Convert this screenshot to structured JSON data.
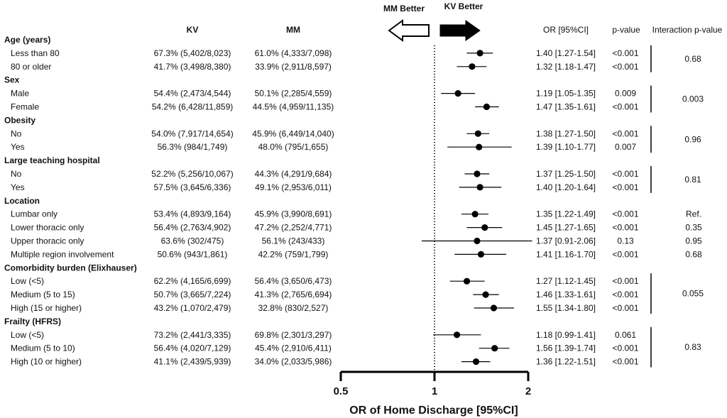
{
  "chart_data": {
    "type": "forest",
    "columns": {
      "kv": "KV",
      "mm": "MM",
      "or": "OR [95%CI]",
      "p": "p-value",
      "interaction": "Interaction p-value"
    },
    "better_labels": {
      "left": "MM Better",
      "right": "KV Better"
    },
    "xlabel": "OR of Home Discharge [95%CI]",
    "x_ticks": [
      "0.5",
      "1",
      "2"
    ],
    "xlim": [
      0.5,
      2
    ],
    "x_scale": "log",
    "reference_line": 1,
    "groups": [
      {
        "title": "Age (years)",
        "interaction_p": "0.68",
        "rows": [
          {
            "label": "Less than 80",
            "kv": "67.3% (5,402/8,023)",
            "mm": "61.0% (4,333/7,098)",
            "or_text": "1.40 [1.27-1.54]",
            "p": "<0.001",
            "or": 1.4,
            "lo": 1.27,
            "hi": 1.54
          },
          {
            "label": "80 or older",
            "kv": "41.7% (3,498/8,380)",
            "mm": "33.9% (2,911/8,597)",
            "or_text": "1.32 [1.18-1.47]",
            "p": "<0.001",
            "or": 1.32,
            "lo": 1.18,
            "hi": 1.47
          }
        ]
      },
      {
        "title": "Sex",
        "interaction_p": "0.003",
        "rows": [
          {
            "label": "Male",
            "kv": "54.4% (2,473/4,544)",
            "mm": "50.1% (2,285/4,559)",
            "or_text": "1.19 [1.05-1.35]",
            "p": "0.009",
            "or": 1.19,
            "lo": 1.05,
            "hi": 1.35
          },
          {
            "label": "Female",
            "kv": "54.2% (6,428/11,859)",
            "mm": "44.5% (4,959/11,135)",
            "or_text": "1.47 [1.35-1.61]",
            "p": "<0.001",
            "or": 1.47,
            "lo": 1.35,
            "hi": 1.61
          }
        ]
      },
      {
        "title": "Obesity",
        "interaction_p": "0.96",
        "rows": [
          {
            "label": "No",
            "kv": "54.0% (7,917/14,654)",
            "mm": "45.9% (6,449/14,040)",
            "or_text": "1.38 [1.27-1.50]",
            "p": "<0.001",
            "or": 1.38,
            "lo": 1.27,
            "hi": 1.5
          },
          {
            "label": "Yes",
            "kv": "56.3% (984/1,749)",
            "mm": "48.0% (795/1,655)",
            "or_text": "1.39 [1.10-1.77]",
            "p": "0.007",
            "or": 1.39,
            "lo": 1.1,
            "hi": 1.77
          }
        ]
      },
      {
        "title": "Large teaching hospital",
        "interaction_p": "0.81",
        "rows": [
          {
            "label": "No",
            "kv": "52.2% (5,256/10,067)",
            "mm": "44.3% (4,291/9,684)",
            "or_text": "1.37 [1.25-1.50]",
            "p": "<0.001",
            "or": 1.37,
            "lo": 1.25,
            "hi": 1.5
          },
          {
            "label": "Yes",
            "kv": "57.5% (3,645/6,336)",
            "mm": "49.1% (2,953/6,011)",
            "or_text": "1.40 [1.20-1.64]",
            "p": "<0.001",
            "or": 1.4,
            "lo": 1.2,
            "hi": 1.64
          }
        ]
      },
      {
        "title": "Location",
        "interaction_p": "",
        "rows": [
          {
            "label": "Lumbar only",
            "kv": "53.4% (4,893/9,164)",
            "mm": "45.9% (3,990/8,691)",
            "or_text": "1.35 [1.22-1.49]",
            "p": "<0.001",
            "interaction": "Ref.",
            "or": 1.35,
            "lo": 1.22,
            "hi": 1.49
          },
          {
            "label": "Lower thoracic only",
            "kv": "56.4% (2,763/4,902)",
            "mm": "47.2% (2,252/4,771)",
            "or_text": "1.45 [1.27-1.65]",
            "p": "<0.001",
            "interaction": "0.35",
            "or": 1.45,
            "lo": 1.27,
            "hi": 1.65
          },
          {
            "label": "Upper thoracic only",
            "kv": "63.6% (302/475)",
            "mm": "56.1% (243/433)",
            "or_text": "1.37 [0.91-2.06]",
            "p": "0.13",
            "interaction": "0.95",
            "or": 1.37,
            "lo": 0.91,
            "hi": 2.06
          },
          {
            "label": "Multiple region involvement",
            "kv": "50.6% (943/1,861)",
            "mm": "42.2% (759/1,799)",
            "or_text": "1.41 [1.16-1.70]",
            "p": "<0.001",
            "interaction": "0.68",
            "or": 1.41,
            "lo": 1.16,
            "hi": 1.7
          }
        ]
      },
      {
        "title": "Comorbidity burden (Elixhauser)",
        "interaction_p": "0.055",
        "rows": [
          {
            "label": "Low (<5)",
            "kv": "62.2% (4,165/6,699)",
            "mm": "56.4% (3,650/6,473)",
            "or_text": "1.27 [1.12-1.45]",
            "p": "<0.001",
            "or": 1.27,
            "lo": 1.12,
            "hi": 1.45
          },
          {
            "label": "Medium (5 to 15)",
            "kv": "50.7% (3,665/7,224)",
            "mm": "41.3% (2,765/6,694)",
            "or_text": "1.46 [1.33-1.61]",
            "p": "<0.001",
            "or": 1.46,
            "lo": 1.33,
            "hi": 1.61
          },
          {
            "label": "High (15 or higher)",
            "kv": "43.2% (1,070/2,479)",
            "mm": "32.8% (830/2,527)",
            "or_text": "1.55 [1.34-1.80]",
            "p": "<0.001",
            "or": 1.55,
            "lo": 1.34,
            "hi": 1.8
          }
        ]
      },
      {
        "title": "Frailty (HFRS)",
        "interaction_p": "0.83",
        "rows": [
          {
            "label": "Low (<5)",
            "kv": "73.2% (2,441/3,335)",
            "mm": "69.8% (2,301/3,297)",
            "or_text": "1.18 [0.99-1.41]",
            "p": "0.061",
            "or": 1.18,
            "lo": 0.99,
            "hi": 1.41
          },
          {
            "label": "Medium (5 to 10)",
            "kv": "56.4% (4,020/7,129)",
            "mm": "45.4% (2,910/6,411)",
            "or_text": "1.56 [1.39-1.74]",
            "p": "<0.001",
            "or": 1.56,
            "lo": 1.39,
            "hi": 1.74
          },
          {
            "label": "High (10 or higher)",
            "kv": "41.1% (2,439/5,939)",
            "mm": "34.0% (2,033/5,986)",
            "or_text": "1.36 [1.22-1.51]",
            "p": "<0.001",
            "or": 1.36,
            "lo": 1.22,
            "hi": 1.51
          }
        ]
      }
    ]
  }
}
